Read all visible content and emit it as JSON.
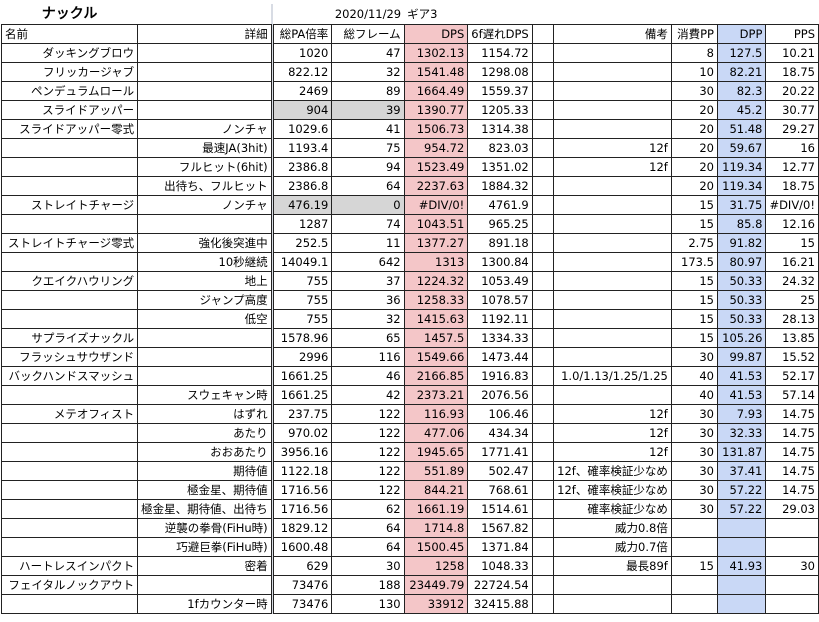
{
  "header": {
    "title": "ナックル",
    "date": "2020/11/29",
    "gear": "ギア3"
  },
  "columns": [
    "名前",
    "詳細",
    "総PA倍率",
    "総フレーム",
    "DPS",
    "6f遅れDPS",
    null,
    "備考",
    "消費PP",
    "DPP",
    "PPS"
  ],
  "rows": [
    [
      "ダッキングブロウ",
      null,
      1020,
      47,
      1302.13,
      1154.72,
      null,
      null,
      8,
      127.5,
      10.21
    ],
    [
      "フリッカージャブ",
      null,
      822.12,
      32,
      1541.48,
      1298.08,
      null,
      null,
      10,
      82.21,
      18.75
    ],
    [
      "ペンデュラムロール",
      null,
      2469,
      89,
      1664.49,
      1559.37,
      null,
      null,
      30,
      82.3,
      20.22
    ],
    [
      "スライドアッパー",
      null,
      904,
      39,
      1390.77,
      1205.33,
      null,
      null,
      20,
      45.2,
      30.77
    ],
    [
      "スライドアッパー零式",
      "ノンチャ",
      1029.6,
      41,
      1506.73,
      1314.38,
      null,
      null,
      20,
      51.48,
      29.27
    ],
    [
      null,
      "最速JA(3hit)",
      1193.4,
      75,
      954.72,
      823.03,
      null,
      "12f",
      20,
      59.67,
      16
    ],
    [
      null,
      "フルヒット(6hit)",
      2386.8,
      94,
      1523.49,
      1351.02,
      null,
      "12f",
      20,
      119.34,
      12.77
    ],
    [
      null,
      "出待ち、フルヒット",
      2386.8,
      64,
      2237.63,
      1884.32,
      null,
      null,
      20,
      119.34,
      18.75
    ],
    [
      "ストレイトチャージ",
      "ノンチャ",
      476.19,
      0,
      "#DIV/0!",
      4761.9,
      null,
      null,
      15,
      31.75,
      "#DIV/0!"
    ],
    [
      null,
      null,
      1287,
      74,
      1043.51,
      965.25,
      null,
      null,
      15,
      85.8,
      12.16
    ],
    [
      "ストレイトチャージ零式",
      "強化後突進中",
      252.5,
      11,
      1377.27,
      891.18,
      null,
      null,
      2.75,
      91.82,
      15
    ],
    [
      null,
      "10秒継続",
      14049.1,
      642,
      1313,
      1300.84,
      null,
      null,
      173.5,
      80.97,
      16.21
    ],
    [
      "クエイクハウリング",
      "地上",
      755,
      37,
      1224.32,
      1053.49,
      null,
      null,
      15,
      50.33,
      24.32
    ],
    [
      null,
      "ジャンプ高度",
      755,
      36,
      1258.33,
      1078.57,
      null,
      null,
      15,
      50.33,
      25
    ],
    [
      null,
      "低空",
      755,
      32,
      1415.63,
      1192.11,
      null,
      null,
      15,
      50.33,
      28.13
    ],
    [
      "サプライズナックル",
      null,
      1578.96,
      65,
      1457.5,
      1334.33,
      null,
      null,
      15,
      105.26,
      13.85
    ],
    [
      "フラッシュサウザンド",
      null,
      2996,
      116,
      1549.66,
      1473.44,
      null,
      null,
      30,
      99.87,
      15.52
    ],
    [
      "バックハンドスマッシュ",
      null,
      1661.25,
      46,
      2166.85,
      1916.83,
      null,
      "1.0/1.13/1.25/1.25",
      40,
      41.53,
      52.17
    ],
    [
      null,
      "スウェキャン時",
      1661.25,
      42,
      2373.21,
      2076.56,
      null,
      null,
      40,
      41.53,
      57.14
    ],
    [
      "メテオフィスト",
      "はずれ",
      237.75,
      122,
      116.93,
      106.46,
      null,
      "12f",
      30,
      7.93,
      14.75
    ],
    [
      null,
      "あたり",
      970.02,
      122,
      477.06,
      434.34,
      null,
      "12f",
      30,
      32.33,
      14.75
    ],
    [
      null,
      "おおあたり",
      3956.16,
      122,
      1945.65,
      1771.41,
      null,
      "12f",
      30,
      131.87,
      14.75
    ],
    [
      null,
      "期待値",
      1122.18,
      122,
      551.89,
      502.47,
      null,
      "12f、確率検証少なめ",
      30,
      37.41,
      14.75
    ],
    [
      null,
      "極金星、期待値",
      1716.56,
      122,
      844.21,
      768.61,
      null,
      "12f、確率検証少なめ",
      30,
      57.22,
      14.75
    ],
    [
      null,
      "極金星、期待値、出待ち",
      1716.56,
      62,
      1661.19,
      1514.61,
      null,
      "確率検証少なめ",
      30,
      57.22,
      29.03
    ],
    [
      null,
      "逆襲の拳骨(FiHu時)",
      1829.12,
      64,
      1714.8,
      1567.82,
      null,
      "威力0.8倍",
      null,
      null,
      null
    ],
    [
      null,
      "巧避巨拳(FiHu時)",
      1600.48,
      64,
      1500.45,
      1371.84,
      null,
      "威力0.7倍",
      null,
      null,
      null
    ],
    [
      "ハートレスインパクト",
      "密着",
      629,
      30,
      1258,
      1048.33,
      null,
      "最長89f",
      15,
      41.93,
      30
    ],
    [
      "フェイタルノックアウト",
      null,
      73476,
      188,
      23449.79,
      22724.54,
      null,
      null,
      null,
      null,
      null
    ],
    [
      null,
      "1fカウンター時",
      73476,
      130,
      33912,
      32415.88,
      null,
      null,
      null,
      null,
      null
    ]
  ]
}
